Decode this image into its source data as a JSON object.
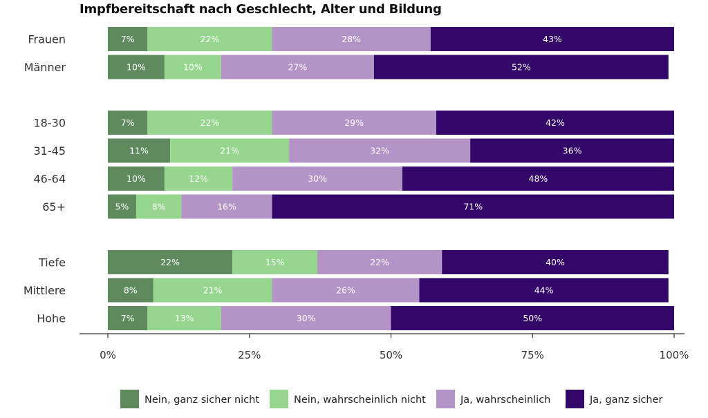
{
  "chart_data": {
    "type": "bar",
    "orientation": "horizontal",
    "stacked": true,
    "title": "Impfbereitschaft nach Geschlecht, Alter und Bildung",
    "xlim": [
      0,
      100
    ],
    "x_ticks": [
      "0%",
      "25%",
      "50%",
      "75%",
      "100%"
    ],
    "groups": [
      {
        "categories": [
          "Frauen",
          "Männer"
        ]
      },
      {
        "categories": [
          "18-30",
          "31-45",
          "46-64",
          "65+"
        ]
      },
      {
        "categories": [
          "Tiefe",
          "Mittlere",
          "Hohe"
        ]
      }
    ],
    "categories": [
      "Frauen",
      "Männer",
      "18-30",
      "31-45",
      "46-64",
      "65+",
      "Tiefe",
      "Mittlere",
      "Hohe"
    ],
    "series": [
      {
        "name": "Nein, ganz sicher nicht",
        "color": "#5e8a5e",
        "label_color": "#ffffff",
        "values": [
          7,
          10,
          7,
          11,
          10,
          5,
          22,
          8,
          7
        ]
      },
      {
        "name": "Nein, wahrscheinlich nicht",
        "color": "#96d68e",
        "label_color": "#ffffff",
        "values": [
          22,
          10,
          22,
          21,
          12,
          8,
          15,
          21,
          13
        ]
      },
      {
        "name": "Ja, wahrscheinlich",
        "color": "#b493c6",
        "label_color": "#ffffff",
        "values": [
          28,
          27,
          29,
          32,
          30,
          16,
          22,
          26,
          30
        ]
      },
      {
        "name": "Ja, ganz sicher",
        "color": "#33066a",
        "label_color": "#ffffff",
        "values": [
          43,
          52,
          42,
          36,
          48,
          71,
          40,
          44,
          50
        ]
      }
    ],
    "legend_position": "bottom",
    "grid": false
  }
}
